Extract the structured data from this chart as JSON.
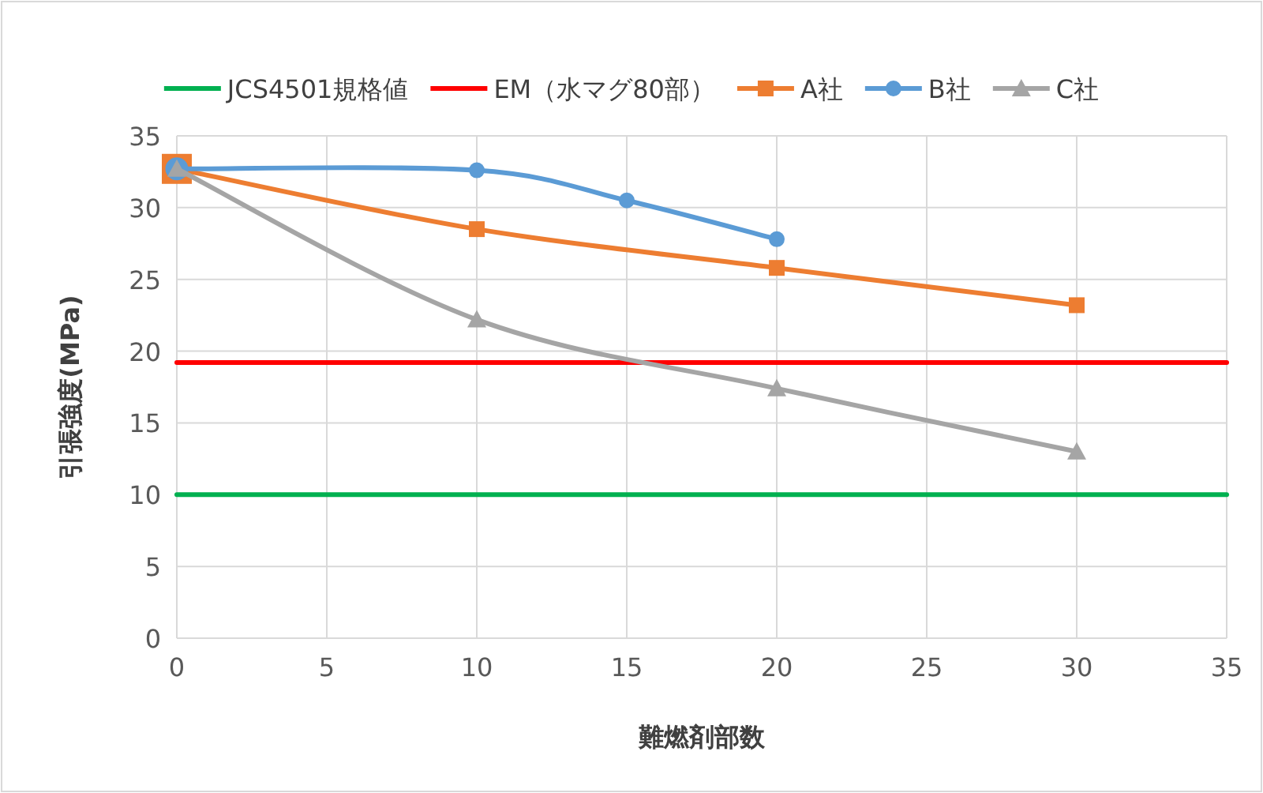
{
  "chart_data": {
    "type": "line",
    "xlabel": "難燃剤部数",
    "ylabel": "引張強度(MPa)",
    "xlim": [
      0,
      35
    ],
    "xticks": [
      0,
      5,
      10,
      15,
      20,
      25,
      30,
      35
    ],
    "ylim": [
      0,
      35
    ],
    "yticks": [
      0,
      5,
      10,
      15,
      20,
      25,
      30,
      35
    ],
    "grid": true,
    "legend": "top",
    "series": [
      {
        "name": "JCS4501規格値",
        "color": "#00b050",
        "x": [
          0,
          35
        ],
        "values": [
          10,
          10
        ],
        "marker": "none"
      },
      {
        "name": "EM（水マグ80部）",
        "color": "#ff0000",
        "x": [
          0,
          35
        ],
        "values": [
          19.2,
          19.2
        ],
        "marker": "none"
      },
      {
        "name": "A社",
        "color": "#ed7d31",
        "x": [
          0,
          10,
          20,
          30
        ],
        "values": [
          32.7,
          28.5,
          25.8,
          23.2
        ],
        "marker": "square"
      },
      {
        "name": "B社",
        "color": "#5b9bd5",
        "x": [
          0,
          10,
          15,
          20
        ],
        "values": [
          32.7,
          32.6,
          30.5,
          27.8
        ],
        "marker": "circle"
      },
      {
        "name": "C社",
        "color": "#a5a5a5",
        "x": [
          0,
          10,
          20,
          30
        ],
        "values": [
          32.7,
          22.2,
          17.4,
          13.0
        ],
        "marker": "triangle"
      }
    ]
  }
}
